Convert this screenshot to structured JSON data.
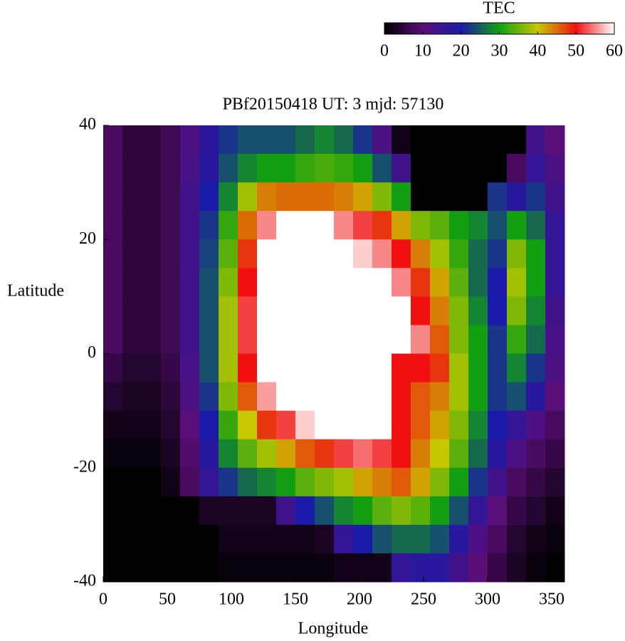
{
  "chart_data": {
    "type": "heatmap",
    "title": "PBf20150418  UT: 3  mjd: 57130",
    "x_label": "Longitude",
    "y_label": "Latitude",
    "xlim": [
      0,
      360
    ],
    "xticks": [
      0,
      50,
      100,
      150,
      200,
      250,
      300,
      350
    ],
    "ylim": [
      -40,
      40
    ],
    "yticks": [
      -40,
      -20,
      0,
      20,
      40
    ],
    "x": [
      7.5,
      22.5,
      37.5,
      52.5,
      67.5,
      82.5,
      97.5,
      112.5,
      127.5,
      142.5,
      157.5,
      172.5,
      187.5,
      202.5,
      217.5,
      232.5,
      247.5,
      262.5,
      277.5,
      292.5,
      307.5,
      322.5,
      337.5,
      352.5
    ],
    "y": [
      37.5,
      32.5,
      27.5,
      22.5,
      17.5,
      12.5,
      7.5,
      2.5,
      -2.5,
      -7.5,
      -12.5,
      -17.5,
      -22.5,
      -27.5,
      -32.5,
      -37.5
    ],
    "values": [
      [
        8,
        5,
        5,
        7,
        12,
        17,
        22,
        24,
        24,
        24,
        26,
        28,
        26,
        22,
        12,
        2,
        0,
        0,
        0,
        0,
        0,
        0,
        14,
        10
      ],
      [
        8,
        5,
        5,
        7,
        13,
        18,
        24,
        28,
        30,
        30,
        32,
        33,
        32,
        30,
        24,
        14,
        0,
        0,
        0,
        0,
        0,
        8,
        16,
        12
      ],
      [
        8,
        5,
        5,
        7,
        14,
        20,
        28,
        38,
        44,
        45,
        45,
        45,
        44,
        42,
        36,
        30,
        0,
        0,
        0,
        0,
        22,
        18,
        22,
        14
      ],
      [
        8,
        5,
        5,
        7,
        14,
        22,
        32,
        45,
        55,
        60,
        60,
        60,
        55,
        52,
        48,
        42,
        36,
        34,
        30,
        28,
        24,
        30,
        26,
        16
      ],
      [
        8,
        5,
        5,
        7,
        14,
        23,
        34,
        48,
        60,
        60,
        60,
        60,
        60,
        58,
        55,
        50,
        44,
        38,
        32,
        26,
        22,
        36,
        30,
        16
      ],
      [
        8,
        5,
        5,
        7,
        14,
        24,
        36,
        50,
        60,
        60,
        60,
        60,
        60,
        60,
        60,
        55,
        48,
        42,
        34,
        26,
        20,
        38,
        30,
        16
      ],
      [
        8,
        5,
        5,
        7,
        14,
        24,
        38,
        52,
        60,
        60,
        60,
        60,
        60,
        60,
        60,
        60,
        50,
        44,
        36,
        28,
        20,
        36,
        28,
        14
      ],
      [
        8,
        5,
        5,
        7,
        14,
        24,
        38,
        52,
        60,
        60,
        60,
        60,
        60,
        60,
        60,
        60,
        55,
        46,
        36,
        30,
        22,
        32,
        26,
        13
      ],
      [
        6,
        4,
        4,
        6,
        13,
        24,
        38,
        50,
        60,
        60,
        60,
        60,
        60,
        60,
        60,
        50,
        50,
        48,
        38,
        30,
        22,
        28,
        22,
        12
      ],
      [
        4,
        3,
        3,
        5,
        12,
        22,
        36,
        46,
        56,
        60,
        60,
        60,
        60,
        60,
        60,
        50,
        46,
        44,
        38,
        30,
        22,
        24,
        18,
        10
      ],
      [
        2,
        2,
        2,
        4,
        10,
        20,
        32,
        40,
        48,
        52,
        58,
        60,
        60,
        60,
        60,
        50,
        46,
        42,
        36,
        28,
        20,
        16,
        12,
        8
      ],
      [
        1,
        1,
        1,
        3,
        9,
        18,
        28,
        34,
        38,
        42,
        46,
        48,
        52,
        54,
        52,
        50,
        44,
        40,
        34,
        26,
        18,
        12,
        8,
        6
      ],
      [
        0,
        0,
        0,
        2,
        8,
        16,
        22,
        26,
        28,
        30,
        34,
        36,
        38,
        42,
        44,
        46,
        42,
        36,
        30,
        22,
        14,
        8,
        6,
        4
      ],
      [
        0,
        0,
        0,
        0,
        0,
        3,
        3,
        3,
        3,
        14,
        20,
        24,
        28,
        30,
        34,
        36,
        34,
        30,
        24,
        16,
        10,
        6,
        4,
        2
      ],
      [
        0,
        0,
        0,
        0,
        0,
        0,
        2,
        2,
        2,
        2,
        2,
        3,
        16,
        20,
        24,
        26,
        26,
        24,
        18,
        12,
        8,
        4,
        2,
        1
      ],
      [
        0,
        0,
        0,
        0,
        0,
        0,
        1,
        1,
        1,
        1,
        1,
        1,
        2,
        2,
        2,
        16,
        18,
        18,
        14,
        10,
        6,
        3,
        1,
        0
      ]
    ],
    "colorbar": {
      "label": "TEC",
      "lim": [
        0,
        60
      ],
      "ticks": [
        0,
        10,
        20,
        30,
        40,
        50,
        60
      ],
      "colors": [
        "#000000",
        "#5a0e78",
        "#1a1aa8",
        "#12a012",
        "#c8c800",
        "#f01010",
        "#ffffff"
      ]
    }
  }
}
